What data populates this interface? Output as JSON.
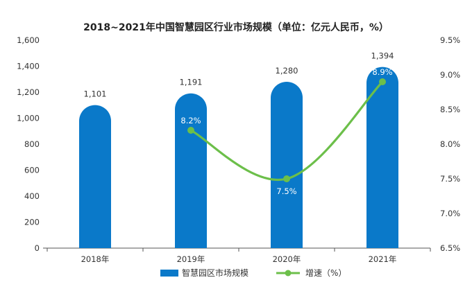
{
  "chart_data": {
    "type": "bar",
    "title": "2018~2021年中国智慧园区行业市场规模（单位：亿元人民币，%）",
    "categories": [
      "2018年",
      "2019年",
      "2020年",
      "2021年"
    ],
    "series": [
      {
        "name": "智慧园区市场规模",
        "type": "bar",
        "axis": "left",
        "values": [
          1101,
          1191,
          1280,
          1394
        ],
        "labels": [
          "1,101",
          "1,191",
          "1,280",
          "1,394"
        ],
        "color": "#0a79c9"
      },
      {
        "name": "增速（%）",
        "type": "line",
        "axis": "right",
        "values": [
          null,
          8.2,
          7.5,
          8.9
        ],
        "labels": [
          "",
          "8.2%",
          "7.5%",
          "8.9%"
        ],
        "color": "#6cbf4a"
      }
    ],
    "y_left": {
      "min": 0,
      "max": 1600,
      "ticks": [
        "0",
        "200",
        "400",
        "600",
        "800",
        "1,000",
        "1,200",
        "1,400",
        "1,600"
      ]
    },
    "y_right": {
      "min": 6.5,
      "max": 9.5,
      "ticks": [
        "6.5%",
        "7.0%",
        "7.5%",
        "8.0%",
        "8.5%",
        "9.0%",
        "9.5%"
      ]
    },
    "legend_position": "bottom",
    "grid": false
  }
}
